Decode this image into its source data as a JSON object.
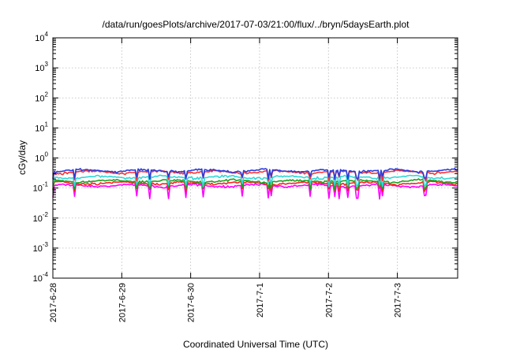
{
  "chart_data": {
    "type": "line",
    "title": "/data/run/goesPlots/archive/2017-07-03/21:00/flux/../bryn/5daysEarth.plot",
    "xlabel": "Coordinated Universal Time (UTC)",
    "ylabel": "cGy/day",
    "yscale": "log",
    "ylim": [
      0.0001,
      10000
    ],
    "y_ticks": [
      {
        "value": 0.0001,
        "base": "10",
        "exp": "-4"
      },
      {
        "value": 0.001,
        "base": "10",
        "exp": "-3"
      },
      {
        "value": 0.01,
        "base": "10",
        "exp": "-2"
      },
      {
        "value": 0.1,
        "base": "10",
        "exp": "-1"
      },
      {
        "value": 1,
        "base": "10",
        "exp": "0"
      },
      {
        "value": 10,
        "base": "10",
        "exp": "1"
      },
      {
        "value": 100,
        "base": "10",
        "exp": "2"
      },
      {
        "value": 1000,
        "base": "10",
        "exp": "3"
      },
      {
        "value": 10000,
        "base": "10",
        "exp": "4"
      }
    ],
    "xlim": [
      "2017-06-28 00:00",
      "2017-07-03 21:00"
    ],
    "x_ticks": [
      "2017-6-28",
      "2017-6-29",
      "2017-6-30",
      "2017-7-1",
      "2017-7-2",
      "2017-7-3"
    ],
    "grid": true,
    "series": [
      {
        "color": "#ff00ff",
        "level": 0.12,
        "dips": 0.05
      },
      {
        "color": "#ff2020",
        "level": 0.145,
        "dips": 0.09
      },
      {
        "color": "#1fa01f",
        "level": 0.17,
        "dips": 0.1
      },
      {
        "color": "#2fd7d7",
        "level": 0.23,
        "dips": 0.13
      },
      {
        "color": "#ff3030",
        "level": 0.34,
        "dips": 0.2
      },
      {
        "color": "#2a3cdc",
        "level": 0.38,
        "dips": 0.22
      }
    ]
  }
}
